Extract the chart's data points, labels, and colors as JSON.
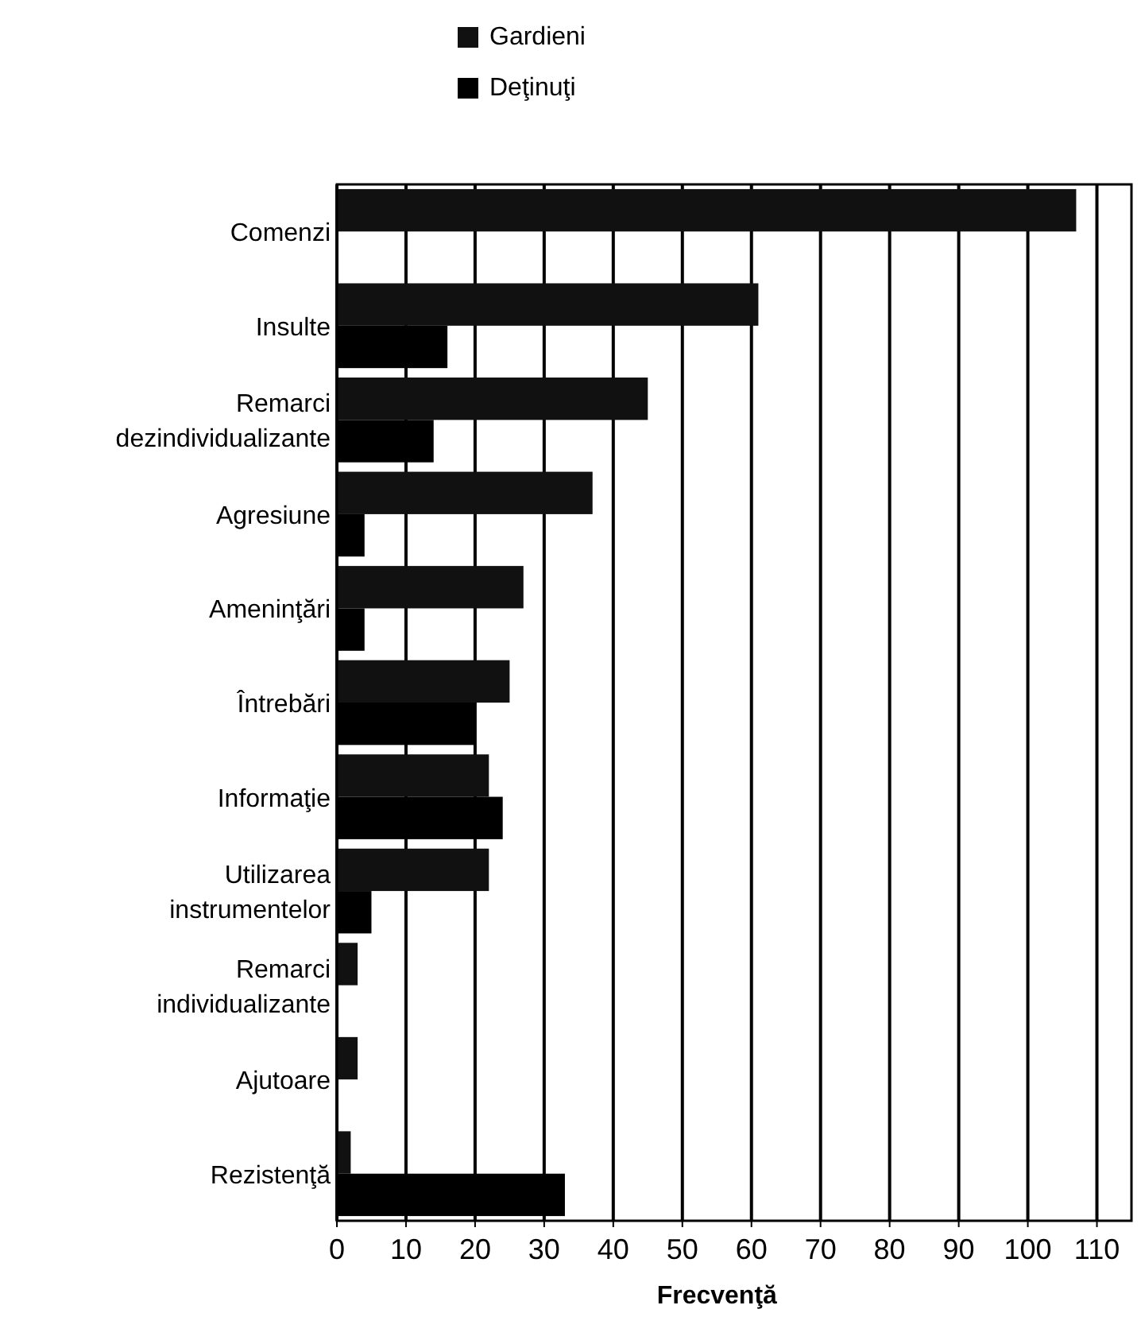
{
  "chart_data": {
    "type": "bar",
    "orientation": "horizontal",
    "xlabel": "Frecvenţă",
    "categories": [
      "Comenzi",
      "Insulte",
      "Remarci dezindividualizante",
      "Agresiune",
      "Ameninţări",
      "Întrebări",
      "Informaţie",
      "Utilizarea instrumentelor",
      "Remarci individualizante",
      "Ajutoare",
      "Rezistenţă"
    ],
    "series": [
      {
        "name": "Gardieni",
        "color": "#111111",
        "values": [
          107,
          61,
          45,
          37,
          27,
          25,
          22,
          22,
          3,
          3,
          2
        ]
      },
      {
        "name": "Deţinuţi",
        "color": "#000000",
        "values": [
          0,
          16,
          14,
          4,
          4,
          20,
          24,
          5,
          0,
          0,
          33
        ]
      }
    ],
    "xlim": [
      0,
      115
    ],
    "xticks": [
      0,
      10,
      20,
      30,
      40,
      50,
      60,
      70,
      80,
      90,
      100,
      110
    ],
    "grid": "x",
    "legend": "top"
  }
}
